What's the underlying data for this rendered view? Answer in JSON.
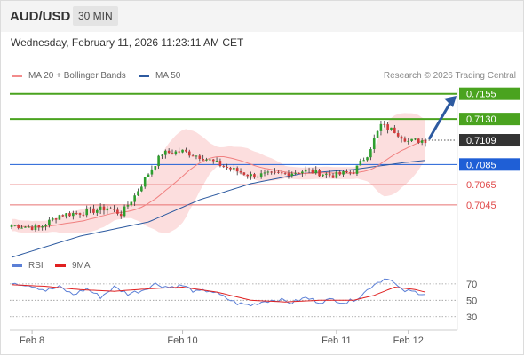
{
  "header": {
    "pair": "AUD/USD",
    "timeframe": "30 MIN"
  },
  "timestamp": "Wednesday, February 11, 2026 11:23:11 AM CET",
  "legend": {
    "items": [
      {
        "label": "MA 20 + Bollinger Bands",
        "color": "#f28b8b"
      },
      {
        "label": "MA 50",
        "color": "#2d5aa0"
      }
    ],
    "credit": "Research © 2026 Trading Central"
  },
  "rsi_legend": {
    "items": [
      {
        "label": "RSI",
        "color": "#5b7fd6"
      },
      {
        "label": "9MA",
        "color": "#e02020"
      }
    ]
  },
  "colors": {
    "resistance": "#4aa31f",
    "support": "#e87070",
    "pivot": "#1f5fd6",
    "current": "#333333",
    "bull": "#2e9e2e",
    "bear": "#d13a3a",
    "band_fill": "#fbd6d6"
  },
  "chart_data": [
    {
      "type": "candlestick",
      "x_tick_labels": [
        "Feb 8",
        "Feb 10",
        "Feb 11",
        "Feb 12"
      ],
      "ylim": [
        0.7,
        0.716
      ],
      "levels": [
        {
          "value": 0.7155,
          "label": "0.7155",
          "kind": "resistance"
        },
        {
          "value": 0.713,
          "label": "0.7130",
          "kind": "resistance"
        },
        {
          "value": 0.7109,
          "label": "0.7109",
          "kind": "current"
        },
        {
          "value": 0.7085,
          "label": "0.7085",
          "kind": "pivot"
        },
        {
          "value": 0.7065,
          "label": "0.7065",
          "kind": "support"
        },
        {
          "value": 0.7045,
          "label": "0.7045",
          "kind": "support"
        }
      ],
      "close_anchors": [
        {
          "bar": 0,
          "value": 0.7025
        },
        {
          "bar": 8,
          "value": 0.7022
        },
        {
          "bar": 14,
          "value": 0.7035
        },
        {
          "bar": 22,
          "value": 0.7038
        },
        {
          "bar": 28,
          "value": 0.7042
        },
        {
          "bar": 32,
          "value": 0.7036
        },
        {
          "bar": 36,
          "value": 0.7054
        },
        {
          "bar": 40,
          "value": 0.7076
        },
        {
          "bar": 44,
          "value": 0.7096
        },
        {
          "bar": 50,
          "value": 0.7098
        },
        {
          "bar": 56,
          "value": 0.7092
        },
        {
          "bar": 62,
          "value": 0.7083
        },
        {
          "bar": 70,
          "value": 0.7074
        },
        {
          "bar": 80,
          "value": 0.7076
        },
        {
          "bar": 86,
          "value": 0.7079
        },
        {
          "bar": 94,
          "value": 0.7074
        },
        {
          "bar": 100,
          "value": 0.7078
        },
        {
          "bar": 104,
          "value": 0.7095
        },
        {
          "bar": 108,
          "value": 0.7124
        },
        {
          "bar": 112,
          "value": 0.7118
        },
        {
          "bar": 116,
          "value": 0.7108
        },
        {
          "bar": 121,
          "value": 0.7109
        }
      ],
      "ma50_anchors": [
        {
          "bar": 0,
          "value": 0.6993
        },
        {
          "bar": 20,
          "value": 0.7014
        },
        {
          "bar": 40,
          "value": 0.7028
        },
        {
          "bar": 55,
          "value": 0.705
        },
        {
          "bar": 70,
          "value": 0.7066
        },
        {
          "bar": 85,
          "value": 0.7076
        },
        {
          "bar": 100,
          "value": 0.708
        },
        {
          "bar": 115,
          "value": 0.7087
        },
        {
          "bar": 121,
          "value": 0.7089
        }
      ]
    },
    {
      "type": "line",
      "ylabel": "RSI",
      "y_tick_labels": [
        "70",
        "50",
        "30"
      ],
      "y_ticks": [
        70,
        50,
        30
      ],
      "ylim": [
        20,
        85
      ],
      "series": [
        {
          "name": "RSI",
          "anchors": [
            [
              0,
              72
            ],
            [
              6,
              68
            ],
            [
              10,
              62
            ],
            [
              14,
              66
            ],
            [
              18,
              57
            ],
            [
              22,
              64
            ],
            [
              26,
              54
            ],
            [
              30,
              66
            ],
            [
              34,
              58
            ],
            [
              38,
              62
            ],
            [
              42,
              70
            ],
            [
              46,
              66
            ],
            [
              50,
              68
            ],
            [
              54,
              60
            ],
            [
              58,
              62
            ],
            [
              62,
              54
            ],
            [
              66,
              46
            ],
            [
              70,
              44
            ],
            [
              74,
              49
            ],
            [
              78,
              51
            ],
            [
              82,
              47
            ],
            [
              86,
              53
            ],
            [
              90,
              48
            ],
            [
              94,
              51
            ],
            [
              98,
              47
            ],
            [
              102,
              55
            ],
            [
              106,
              70
            ],
            [
              110,
              78
            ],
            [
              114,
              62
            ],
            [
              118,
              60
            ],
            [
              121,
              58
            ]
          ]
        },
        {
          "name": "9MA",
          "anchors": [
            [
              0,
              69
            ],
            [
              10,
              67
            ],
            [
              20,
              63
            ],
            [
              30,
              61
            ],
            [
              40,
              64
            ],
            [
              50,
              66
            ],
            [
              60,
              60
            ],
            [
              70,
              50
            ],
            [
              80,
              48
            ],
            [
              90,
              50
            ],
            [
              100,
              50
            ],
            [
              106,
              56
            ],
            [
              112,
              66
            ],
            [
              118,
              63
            ],
            [
              121,
              60
            ]
          ]
        }
      ]
    }
  ]
}
